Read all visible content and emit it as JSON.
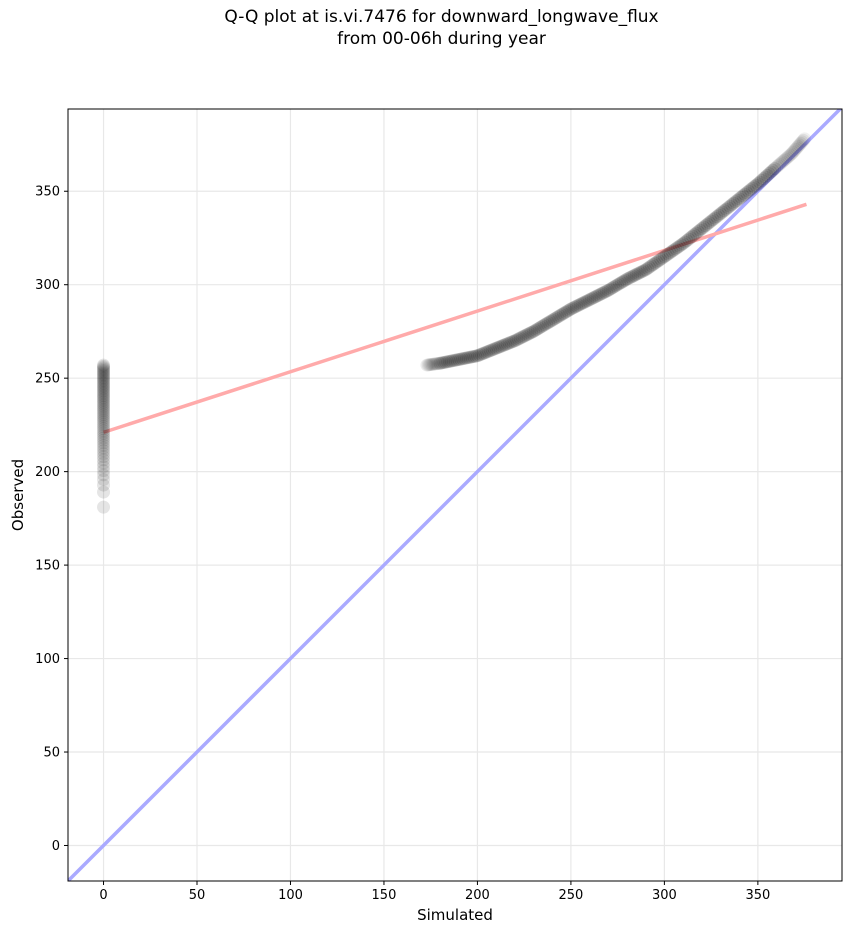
{
  "chart_data": {
    "type": "scatter",
    "title": "Q-Q plot at is.vi.7476 for downward_longwave_flux",
    "subtitle": "from 00-06h during year",
    "xlabel": "Simulated",
    "ylabel": "Observed",
    "xlim": [
      -19,
      395
    ],
    "ylim": [
      -19,
      394
    ],
    "x_ticks": [
      0,
      50,
      100,
      150,
      200,
      250,
      300,
      350
    ],
    "y_ticks": [
      0,
      50,
      100,
      150,
      200,
      250,
      300,
      350
    ],
    "grid": true,
    "marker_color": "#000000",
    "quantile_points": {
      "cluster_at_zero": {
        "x": 0,
        "y_range": [
          181,
          257
        ]
      },
      "curve": [
        [
          173,
          257
        ],
        [
          180,
          258
        ],
        [
          190,
          260
        ],
        [
          200,
          262
        ],
        [
          210,
          266
        ],
        [
          220,
          270
        ],
        [
          230,
          275
        ],
        [
          240,
          281
        ],
        [
          250,
          287
        ],
        [
          260,
          292
        ],
        [
          270,
          297
        ],
        [
          280,
          303
        ],
        [
          290,
          308
        ],
        [
          300,
          315
        ],
        [
          310,
          322
        ],
        [
          320,
          330
        ],
        [
          330,
          338
        ],
        [
          340,
          346
        ],
        [
          350,
          354
        ],
        [
          360,
          363
        ],
        [
          368,
          370
        ],
        [
          375,
          378
        ]
      ]
    },
    "identity_line": {
      "color": "#aaaaff",
      "points": [
        [
          -19,
          -19
        ],
        [
          395,
          395
        ]
      ]
    },
    "regression_line": {
      "color": "#ffaaaa",
      "points": [
        [
          0,
          221
        ],
        [
          376,
          343
        ]
      ]
    }
  }
}
